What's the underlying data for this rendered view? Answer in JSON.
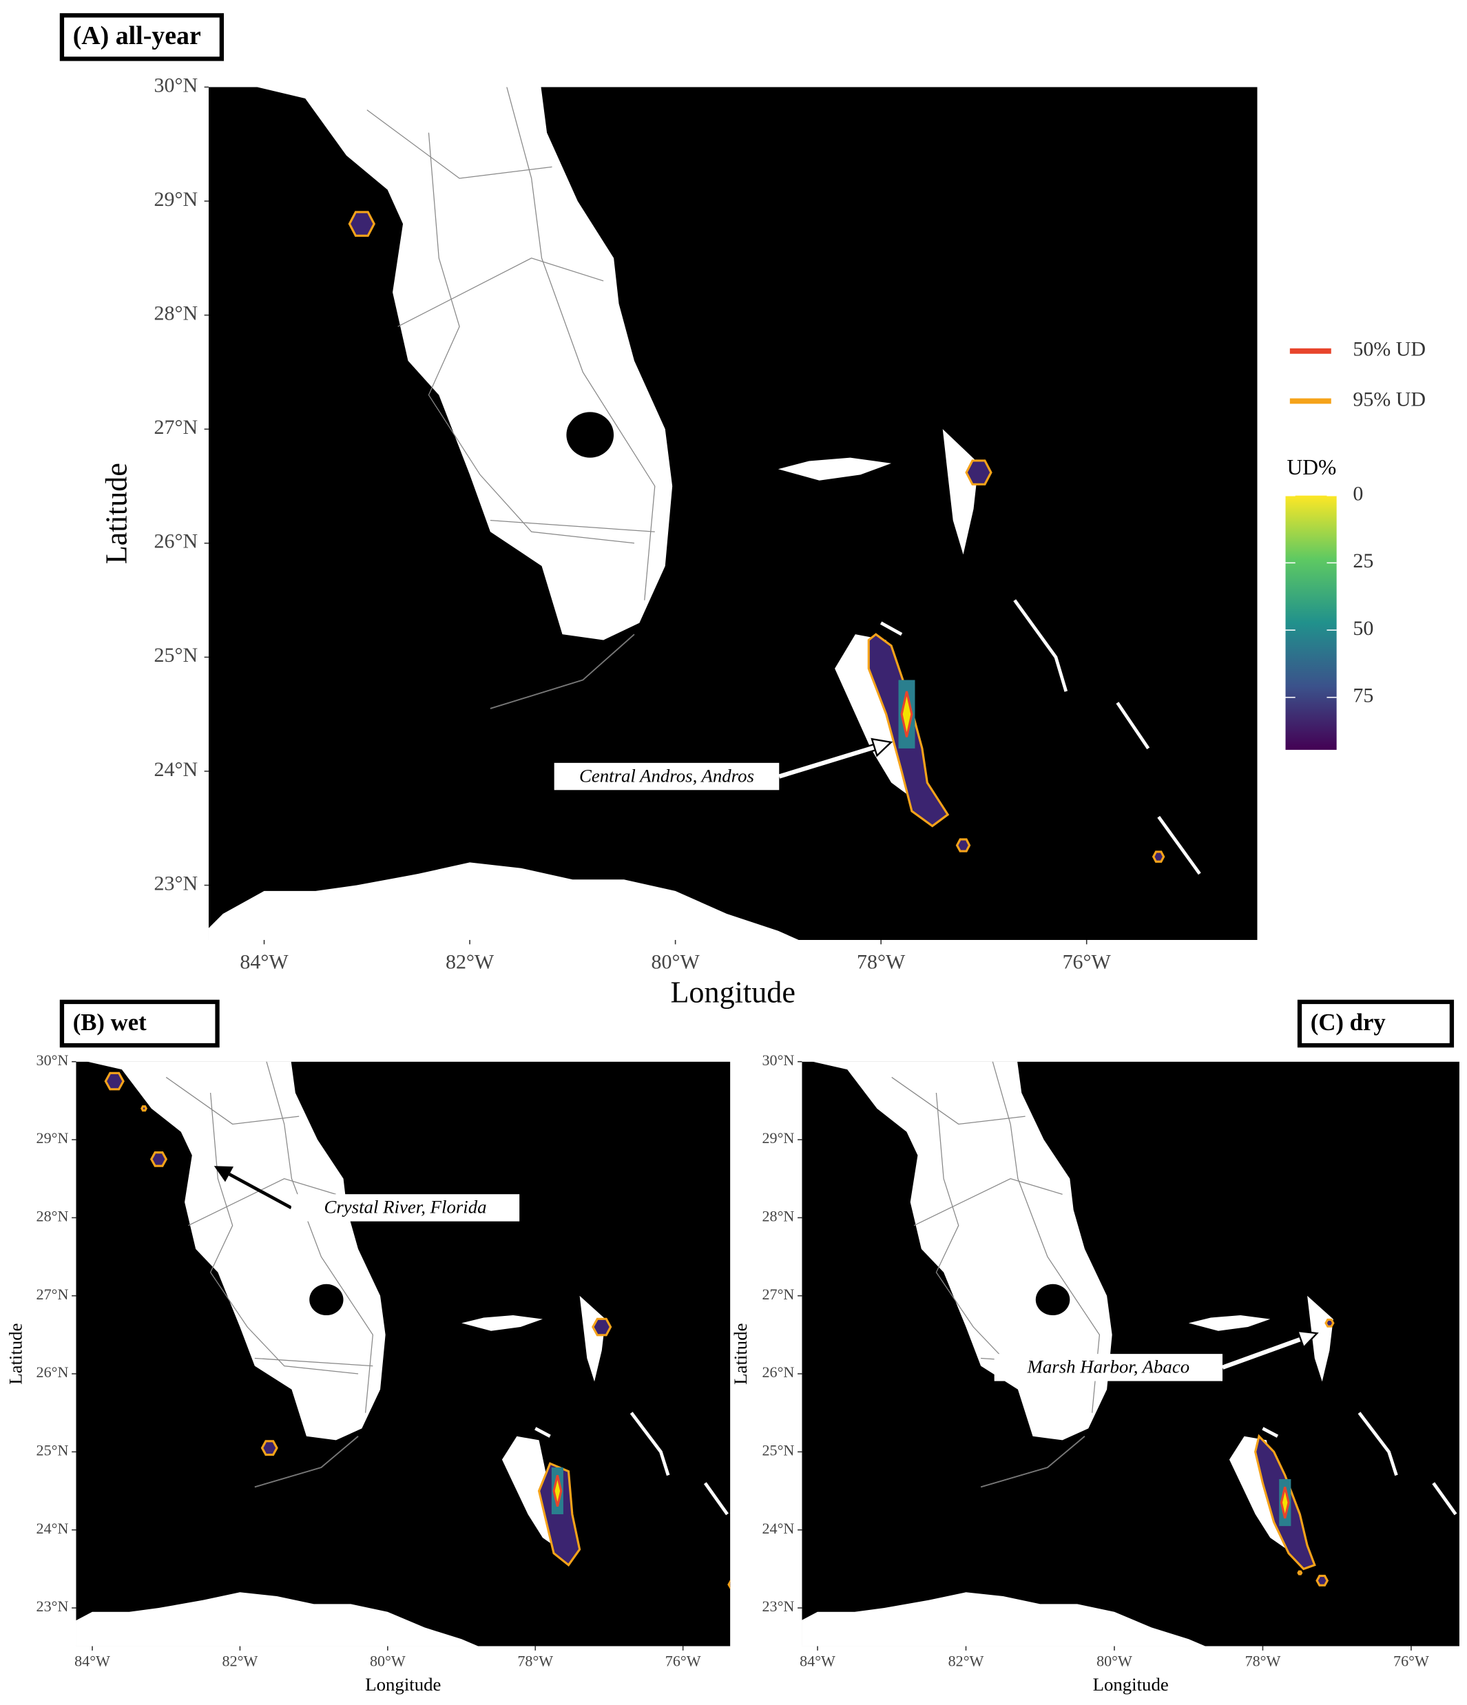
{
  "panels": [
    {
      "label": "(A) all-year",
      "x_axis_label": "Longitude",
      "y_axis_label": "Latitude",
      "xlim": [
        -84.54,
        -74.34
      ],
      "ylim": [
        22.52,
        30
      ],
      "xticks": [
        {
          "value": -84,
          "label": "84°W"
        },
        {
          "value": -82,
          "label": "82°W"
        },
        {
          "value": -80,
          "label": "80°W"
        },
        {
          "value": -78,
          "label": "78°W"
        },
        {
          "value": -76,
          "label": "76°W"
        }
      ],
      "yticks": [
        {
          "value": 30,
          "label": "30°N"
        },
        {
          "value": 29,
          "label": "29°N"
        },
        {
          "value": 28,
          "label": "28°N"
        },
        {
          "value": 27,
          "label": "27°N"
        },
        {
          "value": 26,
          "label": "26°N"
        },
        {
          "value": 25,
          "label": "25°N"
        },
        {
          "value": 24,
          "label": "24°N"
        },
        {
          "value": 23,
          "label": "23°N"
        }
      ],
      "annotation": "Central Andros, Andros"
    },
    {
      "label": "(B) wet",
      "x_axis_label": "Longitude",
      "y_axis_label": "Latitude",
      "xlim": [
        -84.22,
        -75.36
      ],
      "ylim": [
        22.51,
        30
      ],
      "xticks": [
        {
          "value": -84,
          "label": "84°W"
        },
        {
          "value": -82,
          "label": "82°W"
        },
        {
          "value": -80,
          "label": "80°W"
        },
        {
          "value": -78,
          "label": "78°W"
        },
        {
          "value": -76,
          "label": "76°W"
        }
      ],
      "yticks": [
        {
          "value": 30,
          "label": "30°N"
        },
        {
          "value": 29,
          "label": "29°N"
        },
        {
          "value": 28,
          "label": "28°N"
        },
        {
          "value": 27,
          "label": "27°N"
        },
        {
          "value": 26,
          "label": "26°N"
        },
        {
          "value": 25,
          "label": "25°N"
        },
        {
          "value": 24,
          "label": "24°N"
        },
        {
          "value": 23,
          "label": "23°N"
        }
      ],
      "annotation": "Crystal River, Florida"
    },
    {
      "label": "(C) dry",
      "x_axis_label": "Longitude",
      "y_axis_label": "Latitude",
      "xlim": [
        -84.21,
        -75.35
      ],
      "ylim": [
        22.51,
        30
      ],
      "xticks": [
        {
          "value": -84,
          "label": "84°W"
        },
        {
          "value": -82,
          "label": "82°W"
        },
        {
          "value": -80,
          "label": "80°W"
        },
        {
          "value": -78,
          "label": "78°W"
        },
        {
          "value": -76,
          "label": "76°W"
        }
      ],
      "yticks": [
        {
          "value": 30,
          "label": "30°N"
        },
        {
          "value": 29,
          "label": "29°N"
        },
        {
          "value": 28,
          "label": "28°N"
        },
        {
          "value": 27,
          "label": "27°N"
        },
        {
          "value": 26,
          "label": "26°N"
        },
        {
          "value": 25,
          "label": "25°N"
        },
        {
          "value": 24,
          "label": "24°N"
        },
        {
          "value": 23,
          "label": "23°N"
        }
      ],
      "annotation": "Marsh Harbor, Abaco"
    }
  ],
  "legend": {
    "lines": [
      {
        "label": "50% UD",
        "color": "#e8452c"
      },
      {
        "label": "95% UD",
        "color": "#f5a31a"
      }
    ],
    "colorbar": {
      "title": "UD%",
      "range": [
        0,
        94.5
      ],
      "ticks": [
        0,
        25,
        50,
        75
      ]
    }
  }
}
